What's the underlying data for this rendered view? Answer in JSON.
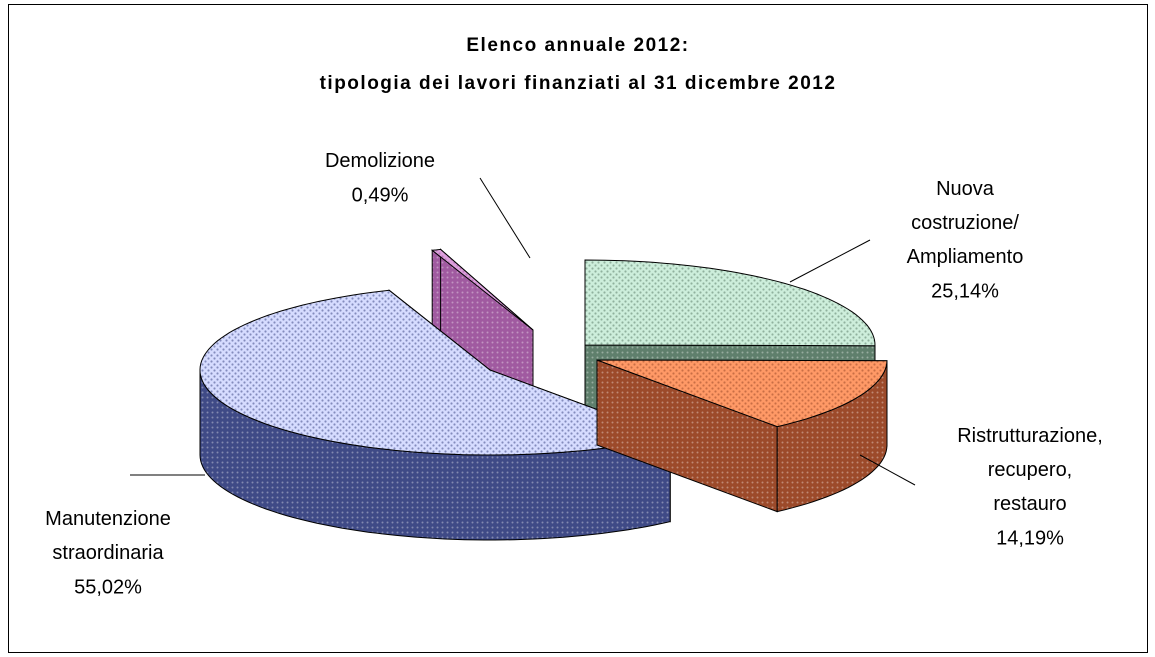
{
  "chart_data": {
    "type": "pie3d",
    "title": "Elenco annuale 2012:",
    "subtitle": "tipologia dei lavori finanziati al 31 dicembre 2012",
    "categories": [
      "Nuova costruzione/ Ampliamento",
      "Ristrutturazione, recupero, restauro",
      "Manutenzione straordinaria",
      "Demolizione"
    ],
    "values": [
      25.14,
      14.19,
      55.02,
      0.49
    ],
    "value_labels": [
      "25,14%",
      "14,19%",
      "55,02%",
      "0,49%"
    ],
    "colors": [
      "#cdeedb",
      "#ff9966",
      "#d6dcff",
      "#dda0dd"
    ],
    "side_colors": [
      "#5f7f6c",
      "#9c4a2a",
      "#3f4a86",
      "#a05aa0"
    ]
  }
}
